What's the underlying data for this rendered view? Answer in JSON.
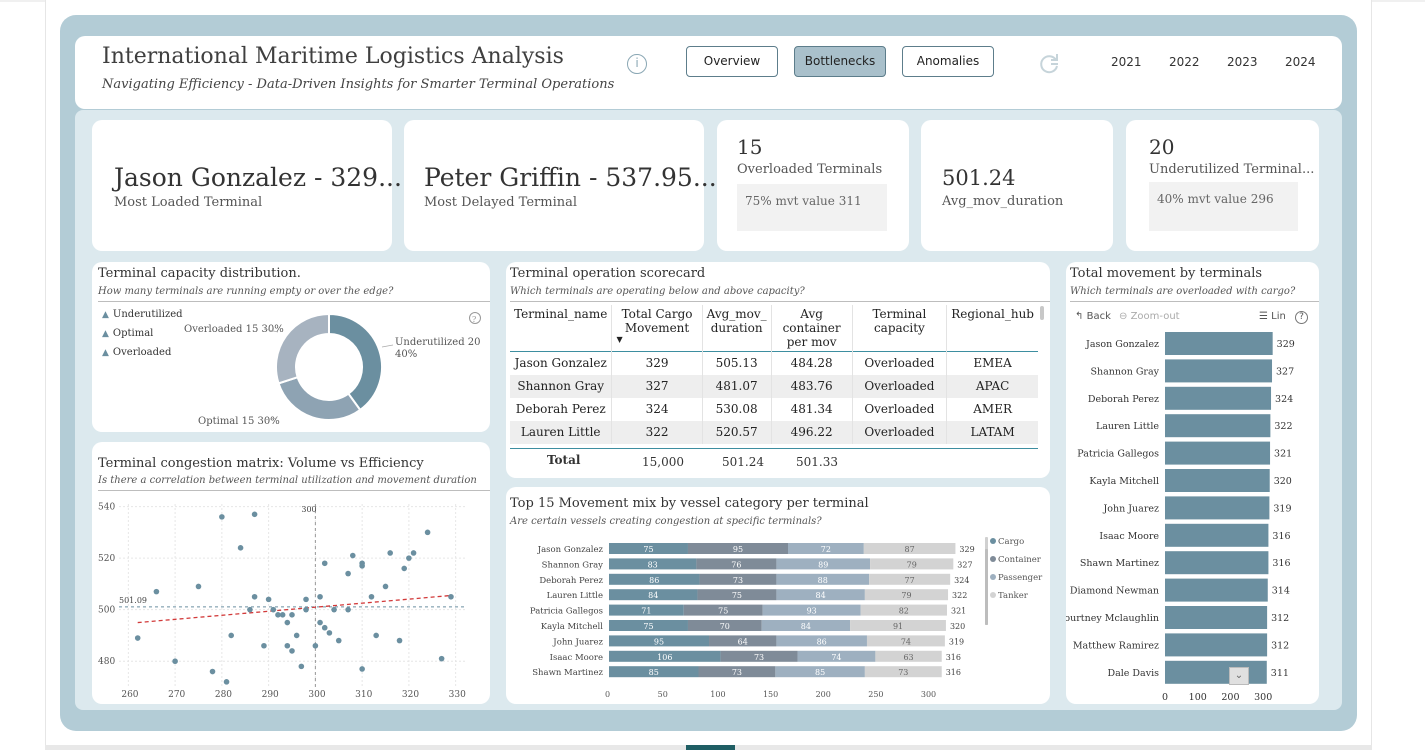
{
  "header": {
    "title": "International Maritime Logistics Analysis",
    "subtitle": "Navigating Efficiency - Data-Driven Insights for Smarter Terminal Operations",
    "nav": [
      {
        "label": "Overview",
        "active": false
      },
      {
        "label": "Bottlenecks",
        "active": true
      },
      {
        "label": "Anomalies",
        "active": false
      }
    ],
    "years": [
      "2021",
      "2022",
      "2023",
      "2024"
    ]
  },
  "kpis": {
    "most_loaded": {
      "value": "Jason Gonzalez - 329...",
      "label": "Most Loaded Terminal"
    },
    "most_delayed": {
      "value": "Peter Griffin - 537.95...",
      "label": "Most Delayed Terminal"
    },
    "overloaded": {
      "value": "15",
      "label": "Overloaded Terminals",
      "note": "75% mvt value 311"
    },
    "avg_duration": {
      "value": "501.24",
      "label": "Avg_mov_duration"
    },
    "underutilized": {
      "value": "20",
      "label": "Underutilized Terminal...",
      "note": "40% mvt value 296"
    }
  },
  "capacity": {
    "title": "Terminal capacity distribution.",
    "subtitle": "How many  terminals are running empty or over the edge?",
    "legend": [
      "Underutilized",
      "Optimal",
      "Overloaded"
    ],
    "labels": {
      "overloaded": "Overloaded 15 30%",
      "underutilized_1": "Underutilized 20",
      "underutilized_2": "40%",
      "optimal": "Optimal 15 30%"
    },
    "colors": {
      "underutilized": "#6b8fa0",
      "optimal": "#8ea3b3",
      "overloaded": "#a7b3c0"
    },
    "chart_data": {
      "type": "pie",
      "categories": [
        "Underutilized",
        "Optimal",
        "Overloaded"
      ],
      "values": [
        20,
        15,
        15
      ]
    }
  },
  "congestion": {
    "title": "Terminal congestion matrix: Volume vs Efficiency",
    "subtitle": "Is there a correlation between terminal utilization and movement duration",
    "ref_x_label": "300",
    "ref_y_label": "501.09",
    "chart_data": {
      "type": "scatter",
      "x_ticks": [
        "260",
        "270",
        "280",
        "290",
        "300",
        "310",
        "320",
        "330"
      ],
      "y_ticks": [
        "540",
        "520",
        "500",
        "480"
      ],
      "xlim": [
        258,
        332
      ],
      "ylim": [
        470,
        541
      ],
      "ref_x": 300,
      "ref_y": 501.09,
      "trend": [
        [
          262,
          495
        ],
        [
          329,
          505.5
        ]
      ],
      "points": [
        [
          262,
          489
        ],
        [
          266,
          507
        ],
        [
          270,
          480
        ],
        [
          275,
          509
        ],
        [
          278,
          476
        ],
        [
          280,
          536
        ],
        [
          281,
          472
        ],
        [
          282,
          490
        ],
        [
          284,
          524
        ],
        [
          286,
          500
        ],
        [
          287,
          505
        ],
        [
          287,
          537
        ],
        [
          289,
          486
        ],
        [
          290,
          504
        ],
        [
          291,
          500
        ],
        [
          292,
          498
        ],
        [
          293,
          498
        ],
        [
          294,
          486
        ],
        [
          294,
          495
        ],
        [
          295,
          484
        ],
        [
          295,
          498
        ],
        [
          296,
          490
        ],
        [
          297,
          478
        ],
        [
          298,
          504
        ],
        [
          298,
          500
        ],
        [
          300,
          486
        ],
        [
          301,
          495
        ],
        [
          301,
          505
        ],
        [
          302,
          493
        ],
        [
          302,
          518
        ],
        [
          303,
          491
        ],
        [
          304,
          500
        ],
        [
          305,
          488
        ],
        [
          307,
          500
        ],
        [
          307,
          514
        ],
        [
          308,
          521
        ],
        [
          310,
          518
        ],
        [
          310,
          477
        ],
        [
          310,
          517
        ],
        [
          312,
          505
        ],
        [
          313,
          490
        ],
        [
          315,
          509
        ],
        [
          316,
          522
        ],
        [
          318,
          488
        ],
        [
          319,
          516
        ],
        [
          320,
          520
        ],
        [
          321,
          522
        ],
        [
          324,
          530
        ],
        [
          327,
          481
        ],
        [
          329,
          505
        ]
      ]
    }
  },
  "scorecard": {
    "title": "Terminal operation scorecard",
    "subtitle": "Which terminals are operating below and above capacity?",
    "columns": [
      "Terminal_name",
      "Total Cargo Movement",
      "Avg_mov_ duration",
      "Avg container per mov",
      "Terminal capacity",
      "Regional_hub"
    ],
    "rows": [
      [
        "Jason Gonzalez",
        "329",
        "505.13",
        "484.28",
        "Overloaded",
        "EMEA"
      ],
      [
        "Shannon Gray",
        "327",
        "481.07",
        "483.76",
        "Overloaded",
        "APAC"
      ],
      [
        "Deborah Perez",
        "324",
        "530.08",
        "481.34",
        "Overloaded",
        "AMER"
      ],
      [
        "Lauren Little",
        "322",
        "520.57",
        "496.22",
        "Overloaded",
        "LATAM"
      ]
    ],
    "total": {
      "label": "Total",
      "cargo": "15,000",
      "duration": "501.24",
      "container": "501.33"
    }
  },
  "mix": {
    "title": "Top 15 Movement mix by vessel category per terminal",
    "subtitle": "Are certain vessels creating congestion at specific terminals?",
    "colors": {
      "Cargo": "#6b8fa0",
      "Container": "#7f8b98",
      "Passenger": "#9eb0c0",
      "Tanker": "#d3d3d3"
    },
    "chart_data": {
      "type": "bar",
      "orientation": "horizontal",
      "stacked": true,
      "categories": [
        "Jason Gonzalez",
        "Shannon Gray",
        "Deborah Perez",
        "Lauren Little",
        "Patricia Gallegos",
        "Kayla Mitchell",
        "John Juarez",
        "Isaac Moore",
        "Shawn Martinez"
      ],
      "series": [
        {
          "name": "Cargo",
          "values": [
            75,
            83,
            86,
            84,
            71,
            75,
            95,
            106,
            85
          ]
        },
        {
          "name": "Container",
          "values": [
            95,
            76,
            73,
            75,
            75,
            70,
            64,
            73,
            73
          ]
        },
        {
          "name": "Passenger",
          "values": [
            72,
            89,
            88,
            84,
            93,
            84,
            86,
            74,
            85
          ]
        },
        {
          "name": "Tanker",
          "values": [
            87,
            79,
            77,
            79,
            82,
            91,
            74,
            63,
            73
          ]
        }
      ],
      "totals": [
        329,
        327,
        324,
        322,
        321,
        320,
        319,
        316,
        316
      ],
      "x_ticks": [
        "0",
        "50",
        "100",
        "150",
        "200",
        "250",
        "300"
      ],
      "xlim": [
        0,
        340
      ]
    }
  },
  "movement": {
    "title": "Total movement by terminals",
    "subtitle": "Which terminals are overloaded with cargo?",
    "toolbar": {
      "back": "Back",
      "zoom": "Zoom-out",
      "lin": "Lin"
    },
    "bar_color": "#6b8fa0",
    "chart_data": {
      "type": "bar",
      "orientation": "horizontal",
      "categories": [
        "Jason Gonzalez",
        "Shannon Gray",
        "Deborah Perez",
        "Lauren Little",
        "Patricia Gallegos",
        "Kayla Mitchell",
        "John Juarez",
        "Isaac Moore",
        "Shawn Martinez",
        "Diamond Newman",
        "Courtney Mclaughlin",
        "Matthew Ramirez",
        "Dale Davis"
      ],
      "values": [
        329,
        327,
        324,
        322,
        321,
        320,
        319,
        316,
        316,
        314,
        312,
        312,
        311
      ],
      "x_ticks": [
        "0",
        "100",
        "200",
        "300"
      ],
      "xlim": [
        0,
        330
      ]
    }
  }
}
